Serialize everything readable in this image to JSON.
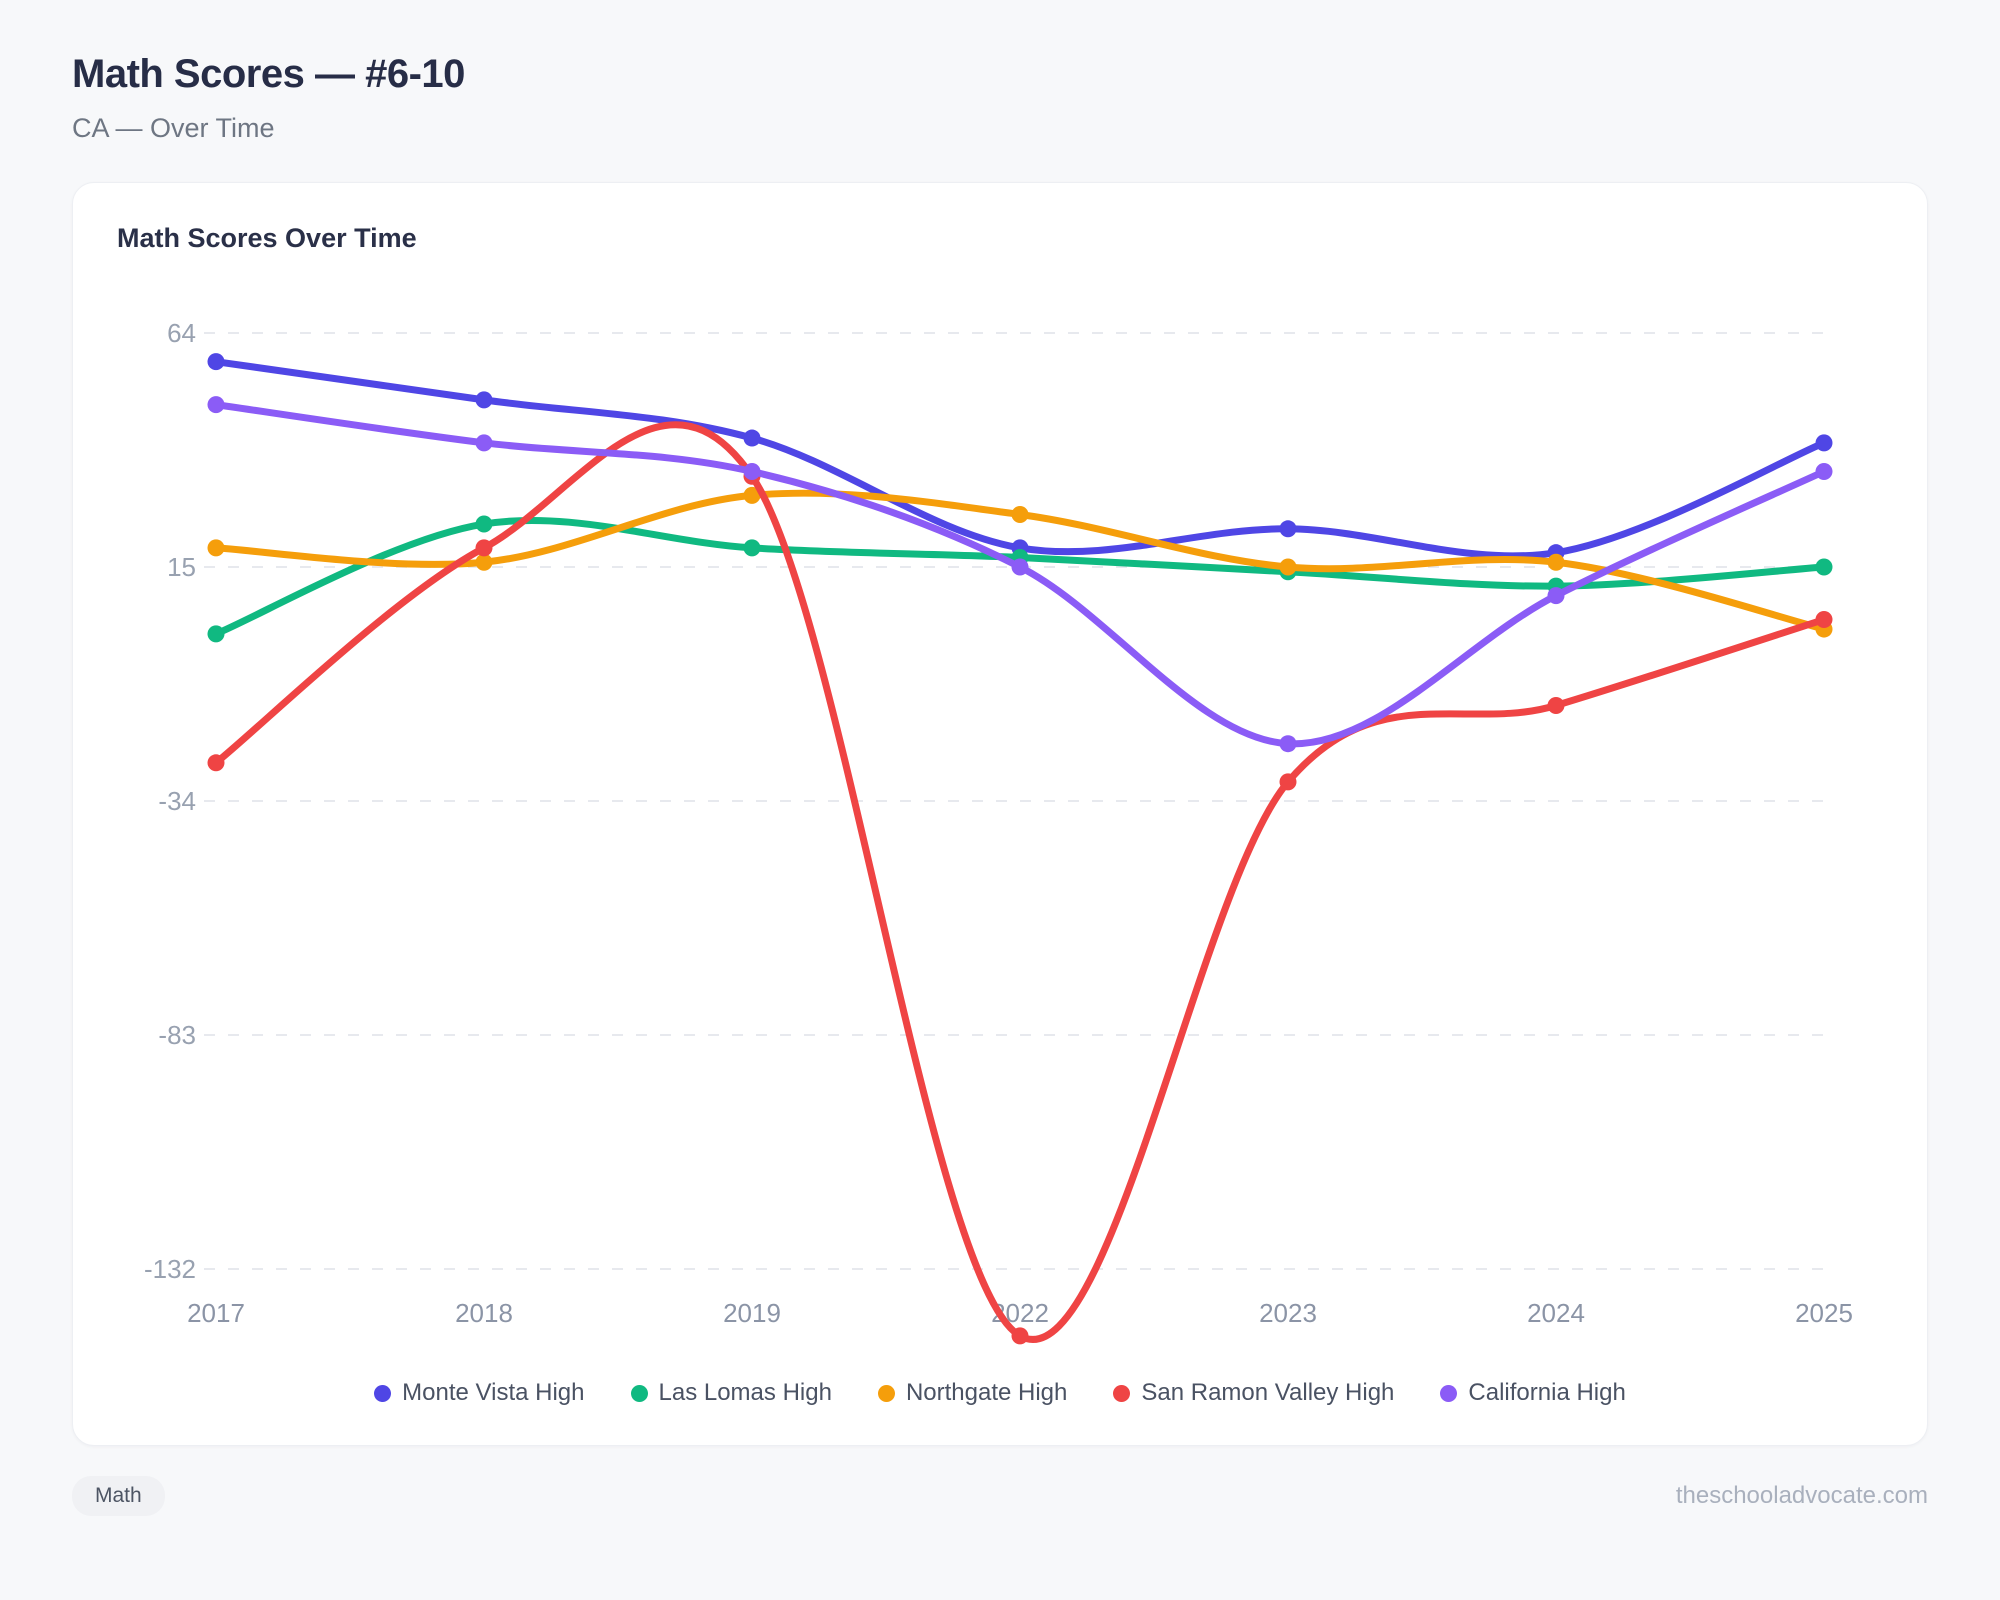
{
  "page": {
    "title": "Math Scores — #6-10",
    "subtitle": "CA — Over Time",
    "footer_tag": "Math",
    "footer_site": "theschooladvocate.com"
  },
  "card": {
    "title": "Math Scores Over Time"
  },
  "chart_data": {
    "type": "line",
    "title": "Math Scores Over Time",
    "x_labels": [
      "2017",
      "2018",
      "2019",
      "2022",
      "2023",
      "2024",
      "2025"
    ],
    "y_ticks": [
      64,
      15,
      -34,
      -83,
      -132
    ],
    "ylim": [
      -160,
      75
    ],
    "grid": "horizontal-dashed",
    "legend_position": "bottom",
    "series": [
      {
        "name": "Monte Vista High",
        "color": "#4f46e5",
        "values": [
          58,
          50,
          42,
          19,
          23,
          18,
          41
        ]
      },
      {
        "name": "Las Lomas High",
        "color": "#10b981",
        "values": [
          1,
          24,
          19,
          17,
          14,
          11,
          15
        ]
      },
      {
        "name": "Northgate High",
        "color": "#f59e0b",
        "values": [
          19,
          16,
          30,
          26,
          15,
          16,
          2
        ]
      },
      {
        "name": "San Ramon Valley High",
        "color": "#ef4444",
        "values": [
          -26,
          19,
          34,
          -146,
          -30,
          -14,
          4
        ]
      },
      {
        "name": "California High",
        "color": "#8b5cf6",
        "values": [
          49,
          41,
          35,
          15,
          -22,
          9,
          35
        ]
      }
    ],
    "style": {
      "gridline_color": "#e7e9ee",
      "tick_label_color": "#98a1b0",
      "x_label_color": "#8b94a6",
      "line_width": 7,
      "point_radius": 8.5
    }
  }
}
